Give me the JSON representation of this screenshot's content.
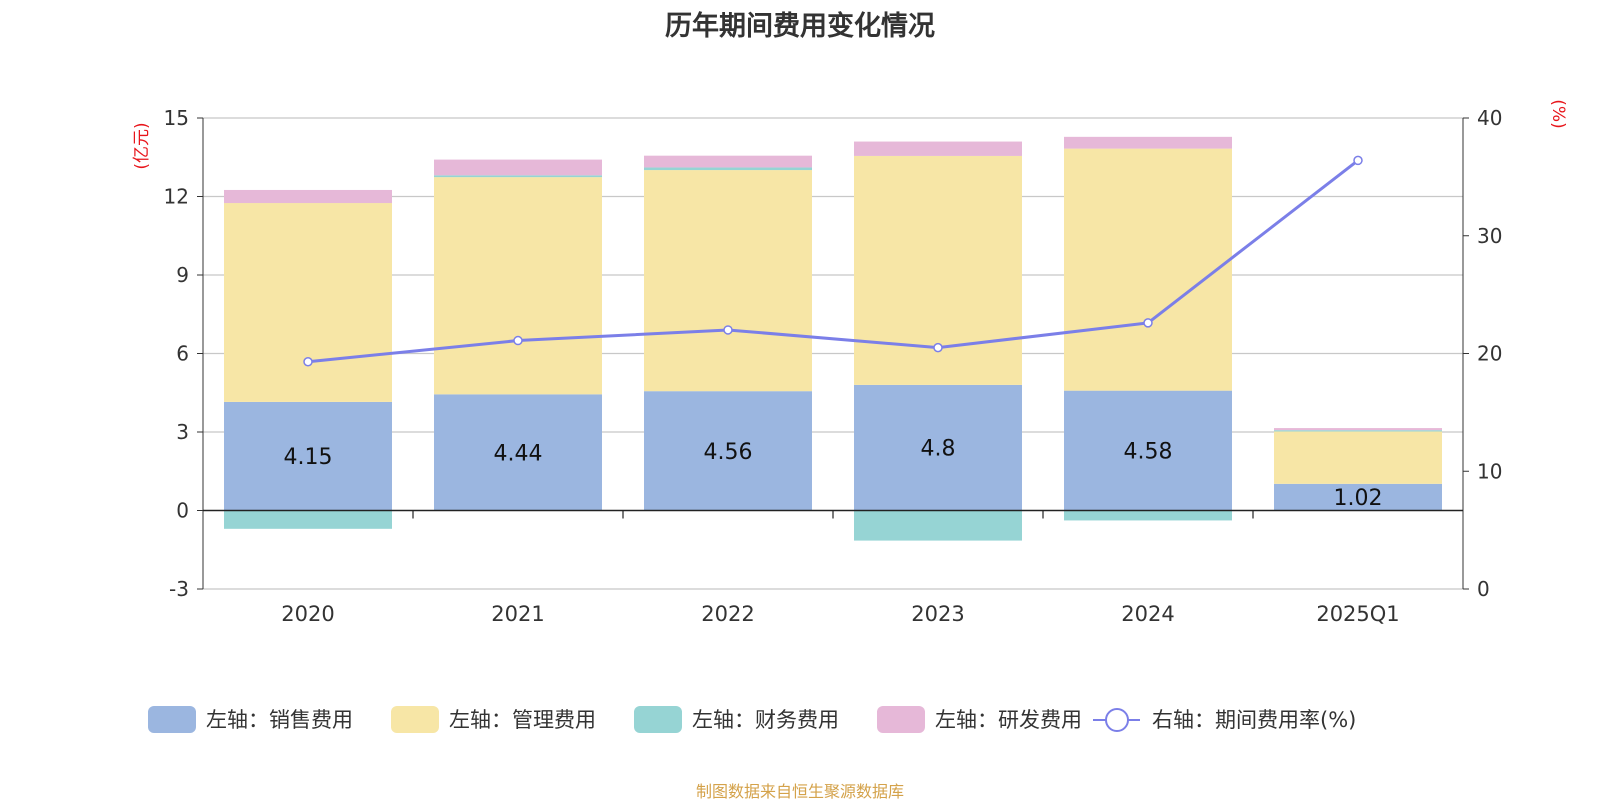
{
  "chart_data": {
    "type": "bar",
    "stacked": true,
    "title": "历年期间费用变化情况",
    "categories": [
      "2020",
      "2021",
      "2022",
      "2023",
      "2024",
      "2025Q1"
    ],
    "left_axis": {
      "label": "(亿元)",
      "ylim": [
        -3,
        15
      ],
      "ticks": [
        "-3",
        "0",
        "3",
        "6",
        "9",
        "12",
        "15"
      ]
    },
    "right_axis": {
      "label": "(%)",
      "ylim": [
        0,
        40
      ],
      "ticks": [
        "0",
        "10",
        "20",
        "30",
        "40"
      ]
    },
    "grid": true,
    "legend_position": "bottom",
    "series": [
      {
        "name": "左轴：销售费用",
        "axis": "left",
        "type": "bar",
        "color": "#9bb6e0",
        "values": [
          4.15,
          4.44,
          4.56,
          4.8,
          4.58,
          1.02
        ],
        "data_labels": [
          "4.15",
          "4.44",
          "4.56",
          "4.8",
          "4.58",
          "1.02"
        ]
      },
      {
        "name": "左轴：管理费用",
        "axis": "left",
        "type": "bar",
        "color": "#f7e6a6",
        "values": [
          7.6,
          8.3,
          8.45,
          8.75,
          9.25,
          2.0
        ]
      },
      {
        "name": "左轴：财务费用",
        "axis": "left",
        "type": "bar",
        "color": "#96d4d4",
        "values": [
          -0.7,
          0.07,
          0.1,
          -1.15,
          -0.38,
          0.05
        ]
      },
      {
        "name": "左轴：研发费用",
        "axis": "left",
        "type": "bar",
        "color": "#e6b8d8",
        "values": [
          0.5,
          0.6,
          0.45,
          0.55,
          0.45,
          0.08
        ]
      },
      {
        "name": "右轴：期间费用率(%)",
        "axis": "right",
        "type": "line",
        "color": "#7b7fe8",
        "values": [
          19.3,
          21.1,
          22.0,
          20.5,
          22.6,
          36.4
        ]
      }
    ]
  },
  "source_note": "制图数据来自恒生聚源数据库"
}
